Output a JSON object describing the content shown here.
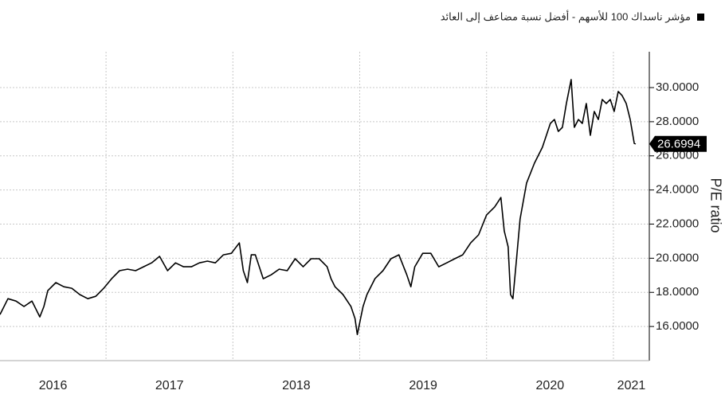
{
  "chart_data": {
    "type": "line",
    "series_name": "مؤشر ناسداك 100 للأسهم - أفضل نسبة مضاعف إلى العائد",
    "y_label": "P/E ratio",
    "color": "#000000",
    "grid": true,
    "x": [
      2016.164,
      2016.227,
      2016.29,
      2016.353,
      2016.416,
      2016.478,
      2016.51,
      2016.541,
      2016.604,
      2016.667,
      2016.73,
      2016.793,
      2016.856,
      2016.919,
      2016.982,
      2017.044,
      2017.107,
      2017.17,
      2017.233,
      2017.296,
      2017.359,
      2017.422,
      2017.485,
      2017.548,
      2017.611,
      2017.673,
      2017.736,
      2017.799,
      2017.862,
      2017.925,
      2017.988,
      2018.051,
      2018.082,
      2018.114,
      2018.145,
      2018.177,
      2018.239,
      2018.302,
      2018.365,
      2018.428,
      2018.491,
      2018.554,
      2018.617,
      2018.68,
      2018.743,
      2018.774,
      2018.805,
      2018.868,
      2018.931,
      2018.963,
      2018.981,
      2019.026,
      2019.057,
      2019.12,
      2019.183,
      2019.246,
      2019.309,
      2019.371,
      2019.403,
      2019.434,
      2019.497,
      2019.56,
      2019.623,
      2019.686,
      2019.749,
      2019.812,
      2019.875,
      2019.937,
      2020.0,
      2020.063,
      2020.113,
      2020.139,
      2020.17,
      2020.189,
      2020.208,
      2020.239,
      2020.264,
      2020.315,
      2020.377,
      2020.44,
      2020.503,
      2020.535,
      2020.566,
      2020.598,
      2020.629,
      2020.667,
      2020.692,
      2020.724,
      2020.755,
      2020.786,
      2020.818,
      2020.849,
      2020.881,
      2020.912,
      2020.944,
      2020.975,
      2021.006,
      2021.038,
      2021.069,
      2021.101,
      2021.132,
      2021.164,
      2021.176
    ],
    "values": [
      16.7,
      17.63,
      17.49,
      17.17,
      17.49,
      16.56,
      17.17,
      18.1,
      18.57,
      18.33,
      18.24,
      17.87,
      17.63,
      17.77,
      18.24,
      18.8,
      19.27,
      19.36,
      19.27,
      19.5,
      19.73,
      20.11,
      19.27,
      19.73,
      19.5,
      19.5,
      19.73,
      19.83,
      19.73,
      20.2,
      20.29,
      20.9,
      19.27,
      18.57,
      20.2,
      20.2,
      18.8,
      19.03,
      19.36,
      19.27,
      19.97,
      19.5,
      19.97,
      19.97,
      19.5,
      18.8,
      18.33,
      17.87,
      17.17,
      16.47,
      15.53,
      17.17,
      17.87,
      18.8,
      19.27,
      19.97,
      20.2,
      19.03,
      18.33,
      19.5,
      20.29,
      20.29,
      19.5,
      19.73,
      19.97,
      20.2,
      20.9,
      21.37,
      22.53,
      23.0,
      23.56,
      21.6,
      20.67,
      17.87,
      17.63,
      20.2,
      22.3,
      24.4,
      25.57,
      26.5,
      27.9,
      28.13,
      27.43,
      27.67,
      29.07,
      30.47,
      27.67,
      28.13,
      27.9,
      29.07,
      27.2,
      28.6,
      28.13,
      29.3,
      29.07,
      29.3,
      28.6,
      29.77,
      29.53,
      29.07,
      28.13,
      26.73,
      26.6994
    ],
    "xlim": [
      2016.164,
      2021.283
    ],
    "xticks": [
      2016,
      2017,
      2018,
      2019,
      2020,
      2021
    ],
    "ylim": [
      14,
      32.1
    ],
    "yticks": [
      {
        "value": 16,
        "label": "16.0000"
      },
      {
        "value": 18,
        "label": "18.0000"
      },
      {
        "value": 20,
        "label": "20.0000"
      },
      {
        "value": 22,
        "label": "22.0000"
      },
      {
        "value": 24,
        "label": "24.0000"
      },
      {
        "value": 26,
        "label": "26.0000"
      },
      {
        "value": 28,
        "label": "28.0000"
      },
      {
        "value": 30,
        "label": "30.0000"
      }
    ]
  }
}
